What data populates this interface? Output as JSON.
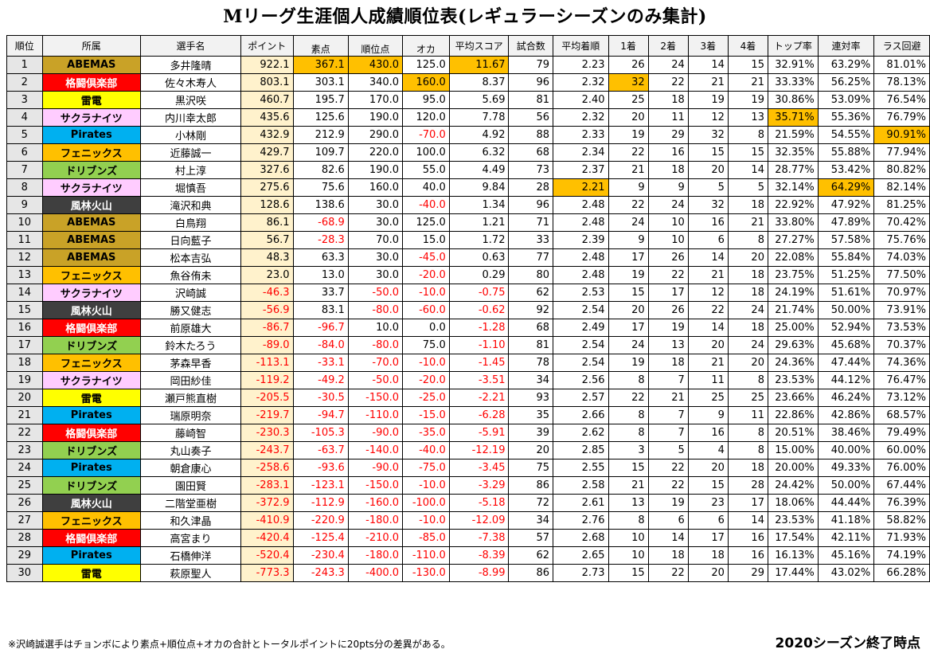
{
  "title": "Mリーグ生涯個人成績順位表(レギュラーシーズンのみ集計)",
  "headers": {
    "rank": "順位",
    "team": "所属",
    "player": "選手名",
    "points": "ポイント",
    "raw": "素点",
    "placement": "順位点",
    "oka": "オカ",
    "avg_score": "平均スコア",
    "games": "試合数",
    "avg_place": "平均着順",
    "first": "1着",
    "second": "2着",
    "third": "3着",
    "fourth": "4着",
    "top_rate": "トップ率",
    "rentai_rate": "連対率",
    "last_avoid": "ラス回避"
  },
  "colors": {
    "ABEMAS": "#c9a227",
    "格闘倶楽部": "#ff0000",
    "雷電": "#ffff00",
    "サクラナイツ": "#ffccff",
    "Pirates": "#00b0f0",
    "フェニックス": "#ffc000",
    "ドリブンズ": "#92d050",
    "風林火山": "#3f3f3f",
    "highlight": "#ffc000",
    "negative": "#ff0000",
    "points_bg": "#fff2cc"
  },
  "rows": [
    {
      "rank": "1",
      "team": "ABEMAS",
      "player": "多井隆晴",
      "points": "922.1",
      "raw": "367.1",
      "placement": "430.0",
      "oka": "125.0",
      "avg_score": "11.67",
      "games": "79",
      "avg_place": "2.23",
      "first": "26",
      "second": "24",
      "third": "14",
      "fourth": "15",
      "top_rate": "32.91%",
      "rentai_rate": "63.29%",
      "last_avoid": "81.01%",
      "hl": [
        "raw",
        "placement",
        "avg_score"
      ]
    },
    {
      "rank": "2",
      "team": "格闘倶楽部",
      "player": "佐々木寿人",
      "points": "803.1",
      "raw": "303.1",
      "placement": "340.0",
      "oka": "160.0",
      "avg_score": "8.37",
      "games": "96",
      "avg_place": "2.32",
      "first": "32",
      "second": "22",
      "third": "21",
      "fourth": "21",
      "top_rate": "33.33%",
      "rentai_rate": "56.25%",
      "last_avoid": "78.13%",
      "hl": [
        "oka",
        "first"
      ]
    },
    {
      "rank": "3",
      "team": "雷電",
      "player": "黒沢咲",
      "points": "460.7",
      "raw": "195.7",
      "placement": "170.0",
      "oka": "95.0",
      "avg_score": "5.69",
      "games": "81",
      "avg_place": "2.40",
      "first": "25",
      "second": "18",
      "third": "19",
      "fourth": "19",
      "top_rate": "30.86%",
      "rentai_rate": "53.09%",
      "last_avoid": "76.54%",
      "hl": []
    },
    {
      "rank": "4",
      "team": "サクラナイツ",
      "player": "内川幸太郎",
      "points": "435.6",
      "raw": "125.6",
      "placement": "190.0",
      "oka": "120.0",
      "avg_score": "7.78",
      "games": "56",
      "avg_place": "2.32",
      "first": "20",
      "second": "11",
      "third": "12",
      "fourth": "13",
      "top_rate": "35.71%",
      "rentai_rate": "55.36%",
      "last_avoid": "76.79%",
      "hl": [
        "top_rate"
      ]
    },
    {
      "rank": "5",
      "team": "Pirates",
      "player": "小林剛",
      "points": "432.9",
      "raw": "212.9",
      "placement": "290.0",
      "oka": "-70.0",
      "avg_score": "4.92",
      "games": "88",
      "avg_place": "2.33",
      "first": "19",
      "second": "29",
      "third": "32",
      "fourth": "8",
      "top_rate": "21.59%",
      "rentai_rate": "54.55%",
      "last_avoid": "90.91%",
      "hl": [
        "last_avoid"
      ]
    },
    {
      "rank": "6",
      "team": "フェニックス",
      "player": "近藤誠一",
      "points": "429.7",
      "raw": "109.7",
      "placement": "220.0",
      "oka": "100.0",
      "avg_score": "6.32",
      "games": "68",
      "avg_place": "2.34",
      "first": "22",
      "second": "16",
      "third": "15",
      "fourth": "15",
      "top_rate": "32.35%",
      "rentai_rate": "55.88%",
      "last_avoid": "77.94%",
      "hl": []
    },
    {
      "rank": "7",
      "team": "ドリブンズ",
      "player": "村上淳",
      "points": "327.6",
      "raw": "82.6",
      "placement": "190.0",
      "oka": "55.0",
      "avg_score": "4.49",
      "games": "73",
      "avg_place": "2.37",
      "first": "21",
      "second": "18",
      "third": "20",
      "fourth": "14",
      "top_rate": "28.77%",
      "rentai_rate": "53.42%",
      "last_avoid": "80.82%",
      "hl": []
    },
    {
      "rank": "8",
      "team": "サクラナイツ",
      "player": "堀慎吾",
      "points": "275.6",
      "raw": "75.6",
      "placement": "160.0",
      "oka": "40.0",
      "avg_score": "9.84",
      "games": "28",
      "avg_place": "2.21",
      "first": "9",
      "second": "9",
      "third": "5",
      "fourth": "5",
      "top_rate": "32.14%",
      "rentai_rate": "64.29%",
      "last_avoid": "82.14%",
      "hl": [
        "avg_place",
        "rentai_rate"
      ]
    },
    {
      "rank": "9",
      "team": "風林火山",
      "player": "滝沢和典",
      "points": "128.6",
      "raw": "138.6",
      "placement": "30.0",
      "oka": "-40.0",
      "avg_score": "1.34",
      "games": "96",
      "avg_place": "2.48",
      "first": "22",
      "second": "24",
      "third": "32",
      "fourth": "18",
      "top_rate": "22.92%",
      "rentai_rate": "47.92%",
      "last_avoid": "81.25%",
      "hl": []
    },
    {
      "rank": "10",
      "team": "ABEMAS",
      "player": "白鳥翔",
      "points": "86.1",
      "raw": "-68.9",
      "placement": "30.0",
      "oka": "125.0",
      "avg_score": "1.21",
      "games": "71",
      "avg_place": "2.48",
      "first": "24",
      "second": "10",
      "third": "16",
      "fourth": "21",
      "top_rate": "33.80%",
      "rentai_rate": "47.89%",
      "last_avoid": "70.42%",
      "hl": []
    },
    {
      "rank": "11",
      "team": "ABEMAS",
      "player": "日向藍子",
      "points": "56.7",
      "raw": "-28.3",
      "placement": "70.0",
      "oka": "15.0",
      "avg_score": "1.72",
      "games": "33",
      "avg_place": "2.39",
      "first": "9",
      "second": "10",
      "third": "6",
      "fourth": "8",
      "top_rate": "27.27%",
      "rentai_rate": "57.58%",
      "last_avoid": "75.76%",
      "hl": []
    },
    {
      "rank": "12",
      "team": "ABEMAS",
      "player": "松本吉弘",
      "points": "48.3",
      "raw": "63.3",
      "placement": "30.0",
      "oka": "-45.0",
      "avg_score": "0.63",
      "games": "77",
      "avg_place": "2.48",
      "first": "17",
      "second": "26",
      "third": "14",
      "fourth": "20",
      "top_rate": "22.08%",
      "rentai_rate": "55.84%",
      "last_avoid": "74.03%",
      "hl": []
    },
    {
      "rank": "13",
      "team": "フェニックス",
      "player": "魚谷侑未",
      "points": "23.0",
      "raw": "13.0",
      "placement": "30.0",
      "oka": "-20.0",
      "avg_score": "0.29",
      "games": "80",
      "avg_place": "2.48",
      "first": "19",
      "second": "22",
      "third": "21",
      "fourth": "18",
      "top_rate": "23.75%",
      "rentai_rate": "51.25%",
      "last_avoid": "77.50%",
      "hl": []
    },
    {
      "rank": "14",
      "team": "サクラナイツ",
      "player": "沢崎誠",
      "points": "-46.3",
      "raw": "33.7",
      "placement": "-50.0",
      "oka": "-10.0",
      "avg_score": "-0.75",
      "games": "62",
      "avg_place": "2.53",
      "first": "15",
      "second": "17",
      "third": "12",
      "fourth": "18",
      "top_rate": "24.19%",
      "rentai_rate": "51.61%",
      "last_avoid": "70.97%",
      "hl": []
    },
    {
      "rank": "15",
      "team": "風林火山",
      "player": "勝又健志",
      "points": "-56.9",
      "raw": "83.1",
      "placement": "-80.0",
      "oka": "-60.0",
      "avg_score": "-0.62",
      "games": "92",
      "avg_place": "2.54",
      "first": "20",
      "second": "26",
      "third": "22",
      "fourth": "24",
      "top_rate": "21.74%",
      "rentai_rate": "50.00%",
      "last_avoid": "73.91%",
      "hl": []
    },
    {
      "rank": "16",
      "team": "格闘倶楽部",
      "player": "前原雄大",
      "points": "-86.7",
      "raw": "-96.7",
      "placement": "10.0",
      "oka": "0.0",
      "avg_score": "-1.28",
      "games": "68",
      "avg_place": "2.49",
      "first": "17",
      "second": "19",
      "third": "14",
      "fourth": "18",
      "top_rate": "25.00%",
      "rentai_rate": "52.94%",
      "last_avoid": "73.53%",
      "hl": []
    },
    {
      "rank": "17",
      "team": "ドリブンズ",
      "player": "鈴木たろう",
      "points": "-89.0",
      "raw": "-84.0",
      "placement": "-80.0",
      "oka": "75.0",
      "avg_score": "-1.10",
      "games": "81",
      "avg_place": "2.54",
      "first": "24",
      "second": "13",
      "third": "20",
      "fourth": "24",
      "top_rate": "29.63%",
      "rentai_rate": "45.68%",
      "last_avoid": "70.37%",
      "hl": []
    },
    {
      "rank": "18",
      "team": "フェニックス",
      "player": "茅森早香",
      "points": "-113.1",
      "raw": "-33.1",
      "placement": "-70.0",
      "oka": "-10.0",
      "avg_score": "-1.45",
      "games": "78",
      "avg_place": "2.54",
      "first": "19",
      "second": "18",
      "third": "21",
      "fourth": "20",
      "top_rate": "24.36%",
      "rentai_rate": "47.44%",
      "last_avoid": "74.36%",
      "hl": []
    },
    {
      "rank": "19",
      "team": "サクラナイツ",
      "player": "岡田紗佳",
      "points": "-119.2",
      "raw": "-49.2",
      "placement": "-50.0",
      "oka": "-20.0",
      "avg_score": "-3.51",
      "games": "34",
      "avg_place": "2.56",
      "first": "8",
      "second": "7",
      "third": "11",
      "fourth": "8",
      "top_rate": "23.53%",
      "rentai_rate": "44.12%",
      "last_avoid": "76.47%",
      "hl": []
    },
    {
      "rank": "20",
      "team": "雷電",
      "player": "瀬戸熊直樹",
      "points": "-205.5",
      "raw": "-30.5",
      "placement": "-150.0",
      "oka": "-25.0",
      "avg_score": "-2.21",
      "games": "93",
      "avg_place": "2.57",
      "first": "22",
      "second": "21",
      "third": "25",
      "fourth": "25",
      "top_rate": "23.66%",
      "rentai_rate": "46.24%",
      "last_avoid": "73.12%",
      "hl": []
    },
    {
      "rank": "21",
      "team": "Pirates",
      "player": "瑞原明奈",
      "points": "-219.7",
      "raw": "-94.7",
      "placement": "-110.0",
      "oka": "-15.0",
      "avg_score": "-6.28",
      "games": "35",
      "avg_place": "2.66",
      "first": "8",
      "second": "7",
      "third": "9",
      "fourth": "11",
      "top_rate": "22.86%",
      "rentai_rate": "42.86%",
      "last_avoid": "68.57%",
      "hl": []
    },
    {
      "rank": "22",
      "team": "格闘倶楽部",
      "player": "藤崎智",
      "points": "-230.3",
      "raw": "-105.3",
      "placement": "-90.0",
      "oka": "-35.0",
      "avg_score": "-5.91",
      "games": "39",
      "avg_place": "2.62",
      "first": "8",
      "second": "7",
      "third": "16",
      "fourth": "8",
      "top_rate": "20.51%",
      "rentai_rate": "38.46%",
      "last_avoid": "79.49%",
      "hl": []
    },
    {
      "rank": "23",
      "team": "ドリブンズ",
      "player": "丸山奏子",
      "points": "-243.7",
      "raw": "-63.7",
      "placement": "-140.0",
      "oka": "-40.0",
      "avg_score": "-12.19",
      "games": "20",
      "avg_place": "2.85",
      "first": "3",
      "second": "5",
      "third": "4",
      "fourth": "8",
      "top_rate": "15.00%",
      "rentai_rate": "40.00%",
      "last_avoid": "60.00%",
      "hl": []
    },
    {
      "rank": "24",
      "team": "Pirates",
      "player": "朝倉康心",
      "points": "-258.6",
      "raw": "-93.6",
      "placement": "-90.0",
      "oka": "-75.0",
      "avg_score": "-3.45",
      "games": "75",
      "avg_place": "2.55",
      "first": "15",
      "second": "22",
      "third": "20",
      "fourth": "18",
      "top_rate": "20.00%",
      "rentai_rate": "49.33%",
      "last_avoid": "76.00%",
      "hl": []
    },
    {
      "rank": "25",
      "team": "ドリブンズ",
      "player": "園田賢",
      "points": "-283.1",
      "raw": "-123.1",
      "placement": "-150.0",
      "oka": "-10.0",
      "avg_score": "-3.29",
      "games": "86",
      "avg_place": "2.58",
      "first": "21",
      "second": "22",
      "third": "15",
      "fourth": "28",
      "top_rate": "24.42%",
      "rentai_rate": "50.00%",
      "last_avoid": "67.44%",
      "hl": []
    },
    {
      "rank": "26",
      "team": "風林火山",
      "player": "二階堂亜樹",
      "points": "-372.9",
      "raw": "-112.9",
      "placement": "-160.0",
      "oka": "-100.0",
      "avg_score": "-5.18",
      "games": "72",
      "avg_place": "2.61",
      "first": "13",
      "second": "19",
      "third": "23",
      "fourth": "17",
      "top_rate": "18.06%",
      "rentai_rate": "44.44%",
      "last_avoid": "76.39%",
      "hl": []
    },
    {
      "rank": "27",
      "team": "フェニックス",
      "player": "和久津晶",
      "points": "-410.9",
      "raw": "-220.9",
      "placement": "-180.0",
      "oka": "-10.0",
      "avg_score": "-12.09",
      "games": "34",
      "avg_place": "2.76",
      "first": "8",
      "second": "6",
      "third": "6",
      "fourth": "14",
      "top_rate": "23.53%",
      "rentai_rate": "41.18%",
      "last_avoid": "58.82%",
      "hl": []
    },
    {
      "rank": "28",
      "team": "格闘倶楽部",
      "player": "高宮まり",
      "points": "-420.4",
      "raw": "-125.4",
      "placement": "-210.0",
      "oka": "-85.0",
      "avg_score": "-7.38",
      "games": "57",
      "avg_place": "2.68",
      "first": "10",
      "second": "14",
      "third": "17",
      "fourth": "16",
      "top_rate": "17.54%",
      "rentai_rate": "42.11%",
      "last_avoid": "71.93%",
      "hl": []
    },
    {
      "rank": "29",
      "team": "Pirates",
      "player": "石橋伸洋",
      "points": "-520.4",
      "raw": "-230.4",
      "placement": "-180.0",
      "oka": "-110.0",
      "avg_score": "-8.39",
      "games": "62",
      "avg_place": "2.65",
      "first": "10",
      "second": "18",
      "third": "18",
      "fourth": "16",
      "top_rate": "16.13%",
      "rentai_rate": "45.16%",
      "last_avoid": "74.19%",
      "hl": []
    },
    {
      "rank": "30",
      "team": "雷電",
      "player": "萩原聖人",
      "points": "-773.3",
      "raw": "-243.3",
      "placement": "-400.0",
      "oka": "-130.0",
      "avg_score": "-8.99",
      "games": "86",
      "avg_place": "2.73",
      "first": "15",
      "second": "22",
      "third": "20",
      "fourth": "29",
      "top_rate": "17.44%",
      "rentai_rate": "43.02%",
      "last_avoid": "66.28%",
      "hl": []
    }
  ],
  "footnote": "※沢崎誠選手はチョンボにより素点+順位点+オカの合計とトータルポイントに20pts分の差異がある。",
  "as_of": "2020シーズン終了時点"
}
